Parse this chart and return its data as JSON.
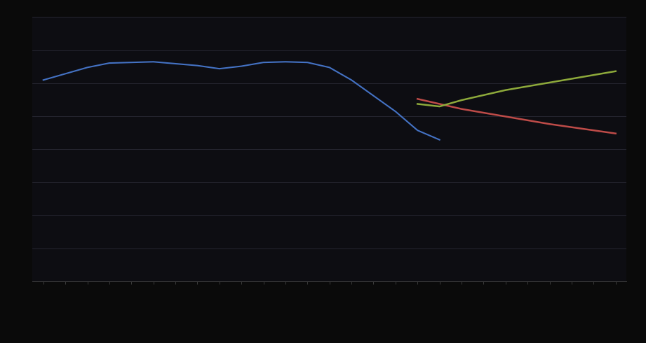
{
  "background_color": "#0a0a0a",
  "plot_bg_color": "#0d0d12",
  "grid_color": "#2a2a35",
  "axis_color": "#444444",
  "text_color": "#888888",
  "blue_color": "#4472c4",
  "red_color": "#be4b48",
  "green_color": "#8eaa3b",
  "blue_x": [
    1995,
    1996,
    1997,
    1998,
    1999,
    2000,
    2001,
    2002,
    2003,
    2004,
    2005,
    2006,
    2007,
    2008,
    2009,
    2010,
    2011,
    2012,
    2013
  ],
  "blue_y": [
    320,
    330,
    340,
    347,
    348,
    349,
    346,
    343,
    338,
    342,
    348,
    349,
    348,
    340,
    320,
    295,
    270,
    240,
    225
  ],
  "red_x": [
    2012,
    2013,
    2014,
    2015,
    2016,
    2017,
    2018,
    2019,
    2020,
    2021
  ],
  "red_y": [
    290,
    282,
    274,
    268,
    262,
    256,
    250,
    245,
    240,
    235
  ],
  "green_x": [
    2012,
    2013,
    2014,
    2015,
    2016,
    2017,
    2018,
    2019,
    2020,
    2021
  ],
  "green_y": [
    282,
    278,
    288,
    296,
    304,
    310,
    316,
    322,
    328,
    334
  ],
  "xlim": [
    1994.5,
    2021.5
  ],
  "ylim": [
    0,
    420
  ],
  "ytick_count": 9,
  "figsize": [
    9.21,
    4.9
  ],
  "dpi": 100,
  "legend_items": [
    "",
    "",
    ""
  ]
}
